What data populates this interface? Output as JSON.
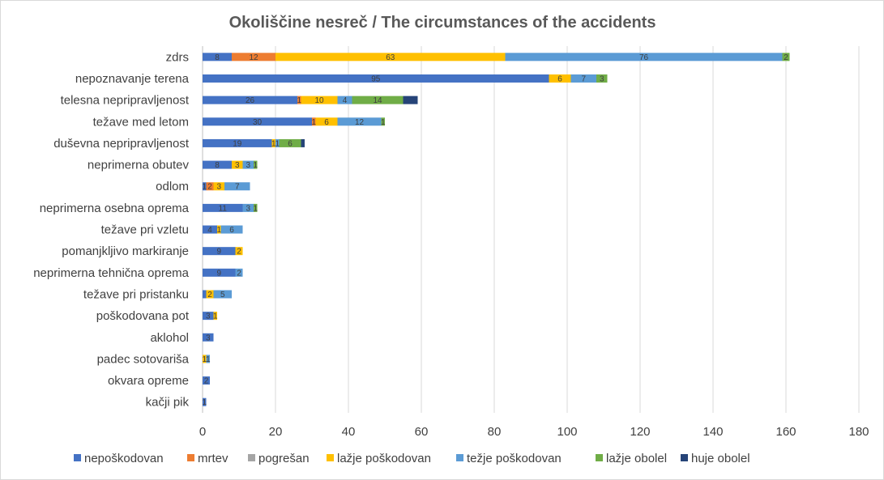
{
  "chart_data": {
    "type": "bar",
    "orientation": "horizontal",
    "stacked": true,
    "title": "Okoliščine nesreč / The circumstances of the accidents",
    "xlabel": "",
    "ylabel": "",
    "xlim": [
      0,
      180
    ],
    "xticks": [
      0,
      20,
      40,
      60,
      80,
      100,
      120,
      140,
      160,
      180
    ],
    "grid": true,
    "legend_position": "bottom",
    "categories": [
      "zdrs",
      "nepoznavanje terena",
      "telesna nepripravljenost",
      "težave med letom",
      "duševna nepripravljenost",
      "neprimerna obutev",
      "odlom",
      "neprimerna osebna oprema",
      "težave pri vzletu",
      "pomanjkljivo markiranje",
      "neprimerna tehnična oprema",
      "težave pri pristanku",
      "poškodovana pot",
      "aklohol",
      "padec sotovariša",
      "okvara opreme",
      "kačji pik"
    ],
    "series": [
      {
        "name": "nepoškodovan",
        "color": "#4472C4",
        "values": [
          8,
          95,
          26,
          30,
          19,
          8,
          1,
          11,
          4,
          9,
          9,
          1,
          3,
          3,
          0,
          2,
          1
        ]
      },
      {
        "name": "mrtev",
        "color": "#ED7D31",
        "values": [
          12,
          0,
          1,
          1,
          0,
          0,
          2,
          0,
          0,
          0,
          0,
          0,
          0,
          0,
          0,
          0,
          0
        ]
      },
      {
        "name": "pogrešan",
        "color": "#A5A5A5",
        "values": [
          0,
          0,
          0,
          0,
          0,
          0,
          0,
          0,
          0,
          0,
          0,
          0,
          0,
          0,
          0,
          0,
          0
        ]
      },
      {
        "name": "lažje poškodovan",
        "color": "#FFC000",
        "values": [
          63,
          6,
          10,
          6,
          1,
          3,
          3,
          0,
          1,
          2,
          0,
          2,
          1,
          0,
          1,
          0,
          0
        ]
      },
      {
        "name": "težje poškodovan",
        "color": "#5B9BD5",
        "values": [
          76,
          7,
          4,
          12,
          1,
          3,
          7,
          3,
          6,
          0,
          2,
          5,
          0,
          0,
          1,
          0,
          0
        ]
      },
      {
        "name": "lažje obolel",
        "color": "#70AD47",
        "values": [
          2,
          3,
          14,
          1,
          6,
          1,
          0,
          1,
          0,
          0,
          0,
          0,
          0,
          0,
          0,
          0,
          0
        ]
      },
      {
        "name": "huje obolel",
        "color": "#264478",
        "values": [
          0,
          0,
          4,
          0,
          1,
          0,
          0,
          0,
          0,
          0,
          0,
          0,
          0,
          0,
          0,
          0,
          0
        ]
      }
    ],
    "data_labels": {
      "zdrs": [
        "8",
        "12",
        "",
        "63",
        "76",
        "2",
        ""
      ],
      "nepoznavanje terena": [
        "95",
        "",
        "",
        "6",
        "7",
        "3",
        ""
      ],
      "telesna nepripravljenost": [
        "26",
        "1",
        "",
        "10",
        "4",
        "14",
        ""
      ],
      "težave med letom": [
        "30",
        "1",
        "",
        "6",
        "12",
        "1",
        ""
      ],
      "duševna nepripravljenost": [
        "19",
        "",
        "",
        "1",
        "1",
        "6",
        ""
      ],
      "neprimerna obutev": [
        "8",
        "",
        "",
        "3",
        "3",
        "1",
        ""
      ],
      "odlom": [
        "1",
        "2",
        "",
        "3",
        "7",
        "",
        ""
      ],
      "neprimerna osebna oprema": [
        "11",
        "",
        "",
        "",
        "3",
        "1",
        ""
      ],
      "težave pri vzletu": [
        "4",
        "",
        "",
        "1",
        "6",
        "",
        ""
      ],
      "pomanjkljivo markiranje": [
        "9",
        "",
        "",
        "2",
        "",
        "",
        ""
      ],
      "neprimerna tehnična oprema": [
        "9",
        "",
        "",
        "",
        "2",
        "",
        ""
      ],
      "težave pri pristanku": [
        "",
        "",
        "",
        "2",
        "5",
        "",
        ""
      ],
      "poškodovana pot": [
        "3",
        "",
        "",
        "1",
        "",
        "",
        ""
      ],
      "aklohol": [
        "3",
        "",
        "",
        "",
        "",
        "",
        ""
      ],
      "padec sotovariša": [
        "",
        "",
        "",
        "1",
        "1",
        "",
        ""
      ],
      "okvara opreme": [
        "2",
        "",
        "",
        "",
        "",
        "",
        ""
      ],
      "kačji pik": [
        "1",
        "",
        "",
        "",
        "",
        "",
        ""
      ]
    }
  }
}
